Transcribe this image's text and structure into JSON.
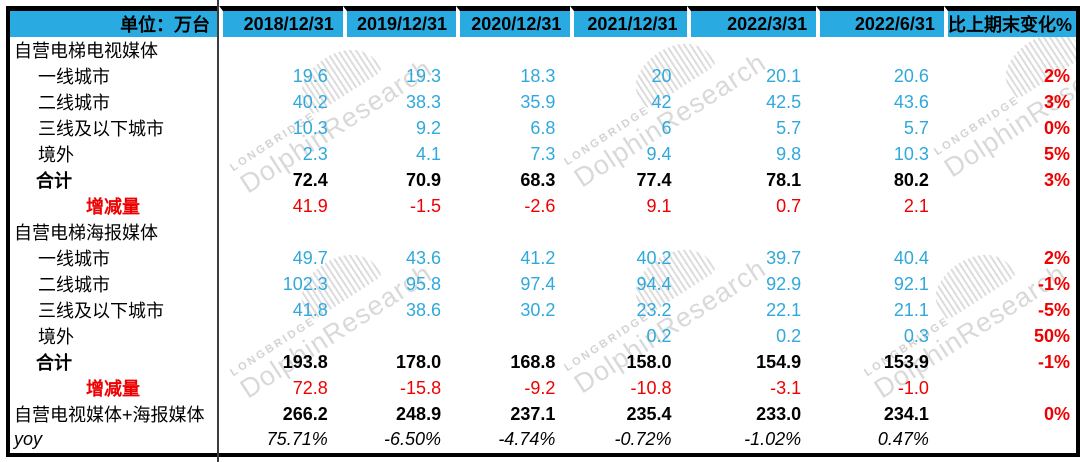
{
  "table": {
    "unit_label": "单位：万台",
    "change_col_label": "比上期末变化%",
    "date_columns": [
      "2018/12/31",
      "2019/12/31",
      "2020/12/31",
      "2021/12/31",
      "2022/3/31",
      "2022/6/31"
    ],
    "rows": [
      {
        "label": "自营电梯电视媒体",
        "type": "section",
        "values": [
          "",
          "",
          "",
          "",
          "",
          ""
        ],
        "change": ""
      },
      {
        "label": "一线城市",
        "type": "city",
        "values": [
          "19.6",
          "19.3",
          "18.3",
          "20",
          "20.1",
          "20.6"
        ],
        "change": "2%"
      },
      {
        "label": "二线城市",
        "type": "city",
        "values": [
          "40.2",
          "38.3",
          "35.9",
          "42",
          "42.5",
          "43.6"
        ],
        "change": "3%"
      },
      {
        "label": "三线及以下城市",
        "type": "city",
        "values": [
          "10.3",
          "9.2",
          "6.8",
          "6",
          "5.7",
          "5.7"
        ],
        "change": "0%"
      },
      {
        "label": "境外",
        "type": "city",
        "values": [
          "2.3",
          "4.1",
          "7.3",
          "9.4",
          "9.8",
          "10.3"
        ],
        "change": "5%"
      },
      {
        "label": "合计",
        "type": "total",
        "values": [
          "72.4",
          "70.9",
          "68.3",
          "77.4",
          "78.1",
          "80.2"
        ],
        "change": "3%"
      },
      {
        "label": "增减量",
        "type": "delta",
        "values": [
          "41.9",
          "-1.5",
          "-2.6",
          "9.1",
          "0.7",
          "2.1"
        ],
        "change": ""
      },
      {
        "label": "自营电梯海报媒体",
        "type": "section",
        "values": [
          "",
          "",
          "",
          "",
          "",
          ""
        ],
        "change": ""
      },
      {
        "label": "一线城市",
        "type": "city",
        "values": [
          "49.7",
          "43.6",
          "41.2",
          "40.2",
          "39.7",
          "40.4"
        ],
        "change": "2%"
      },
      {
        "label": "二线城市",
        "type": "city",
        "values": [
          "102.3",
          "95.8",
          "97.4",
          "94.4",
          "92.9",
          "92.1"
        ],
        "change": "-1%"
      },
      {
        "label": "三线及以下城市",
        "type": "city",
        "values": [
          "41.8",
          "38.6",
          "30.2",
          "23.2",
          "22.1",
          "21.1"
        ],
        "change": "-5%"
      },
      {
        "label": "境外",
        "type": "city",
        "values": [
          "",
          "",
          "",
          "0.2",
          "0.2",
          "0.3"
        ],
        "change": "50%"
      },
      {
        "label": "合计",
        "type": "total",
        "values": [
          "193.8",
          "178.0",
          "168.8",
          "158.0",
          "154.9",
          "153.9"
        ],
        "change": "-1%"
      },
      {
        "label": "增减量",
        "type": "delta",
        "values": [
          "72.8",
          "-15.8",
          "-9.2",
          "-10.8",
          "-3.1",
          "-1.0"
        ],
        "change": ""
      },
      {
        "label": "自营电视媒体+海报媒体",
        "type": "combined",
        "values": [
          "266.2",
          "248.9",
          "237.1",
          "235.4",
          "233.0",
          "234.1"
        ],
        "change": "0%"
      },
      {
        "label": "yoy",
        "type": "yoy",
        "values": [
          "75.71%",
          "-6.50%",
          "-4.74%",
          "-0.72%",
          "-1.02%",
          "0.47%"
        ],
        "change": ""
      }
    ]
  },
  "watermark": {
    "brand_small": "LONGBRIDGE",
    "brand_large": "DolphinResearch"
  },
  "colors": {
    "header_bg": "#29ABE2",
    "value_blue": "#2FA9DC",
    "red": "#EE0000",
    "border_black": "#000000",
    "watermark_gray": "#D9D9D9"
  }
}
